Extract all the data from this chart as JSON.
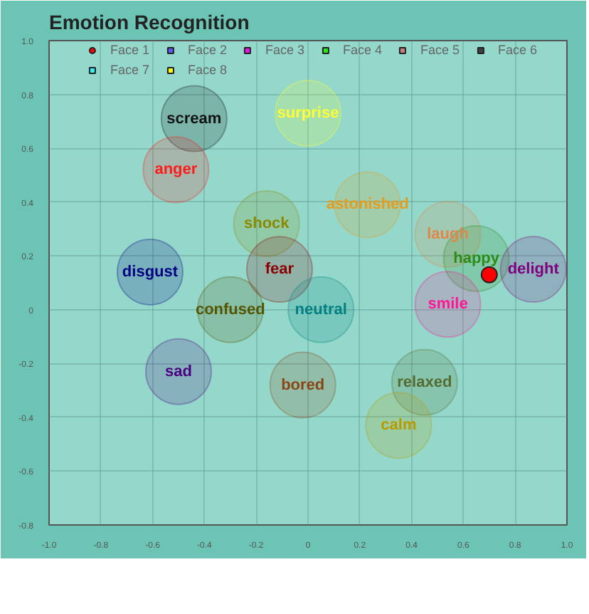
{
  "chart_data": {
    "type": "scatter",
    "title": "Emotion Recognition",
    "series": [
      {
        "x": [
          -0.44,
          0.0,
          -0.51,
          0.23,
          -0.16,
          0.54,
          0.65,
          0.87,
          -0.61,
          -0.11,
          -0.3,
          0.05,
          0.54,
          -0.5,
          -0.02,
          0.45,
          0.35
        ],
        "values": [
          0.71,
          0.73,
          0.52,
          0.39,
          0.32,
          0.28,
          0.19,
          0.15,
          0.14,
          0.15,
          0.0,
          0.0,
          0.02,
          -0.23,
          -0.28,
          -0.27,
          -0.43
        ],
        "value_labels": [
          "scream",
          "surprise",
          "anger",
          "astonished",
          "shock",
          "laugh",
          "happy",
          "delight",
          "disgust",
          "fear",
          "confused",
          "neutral",
          "smile",
          "sad",
          "bored",
          "relaxed",
          "calm"
        ],
        "colors": [
          "#111111",
          "#ffff33",
          "#ff1a1a",
          "#e69c1c",
          "#8a8a00",
          "#e0884a",
          "#2e8b1a",
          "#800080",
          "#000080",
          "#8b0000",
          "#555500",
          "#008080",
          "#ff1493",
          "#4b0082",
          "#8b4513",
          "#556b2f",
          "#b89a00"
        ]
      },
      {
        "name": "Face 1",
        "color": "#ff0000",
        "x": [
          0.7
        ],
        "values": [
          0.13
        ]
      },
      {
        "name": "Face 2",
        "color": "#5b5bf5"
      },
      {
        "name": "Face 3",
        "color": "#e817e8"
      },
      {
        "name": "Face 4",
        "color": "#22ee11"
      },
      {
        "name": "Face 5",
        "color": "#c98080"
      },
      {
        "name": "Face 6",
        "color": "#404040"
      },
      {
        "name": "Face 7",
        "color": "#33f5f5"
      },
      {
        "name": "Face 8",
        "color": "#ffff00"
      }
    ],
    "xlim": [
      -1.0,
      1.0
    ],
    "ylim": [
      -0.8,
      1.0
    ],
    "xticks": [
      {
        "value": -1.0,
        "label": "-1.0"
      },
      {
        "value": -0.8,
        "label": "-0.8"
      },
      {
        "value": -0.6,
        "label": "-0.6"
      },
      {
        "value": -0.4,
        "label": "-0.4"
      },
      {
        "value": -0.2,
        "label": "-0.2"
      },
      {
        "value": 0,
        "label": "0"
      },
      {
        "value": 0.2,
        "label": "0.2"
      },
      {
        "value": 0.4,
        "label": "0.4"
      },
      {
        "value": 0.6,
        "label": "0.6"
      },
      {
        "value": 0.8,
        "label": "0.8"
      },
      {
        "value": 1.0,
        "label": "1.0"
      }
    ],
    "yticks": [
      {
        "value": -0.8,
        "label": "-0.8"
      },
      {
        "value": -0.6,
        "label": "-0.6"
      },
      {
        "value": -0.4,
        "label": "-0.4"
      },
      {
        "value": -0.2,
        "label": "-0.2"
      },
      {
        "value": 0,
        "label": "0"
      },
      {
        "value": 0.2,
        "label": "0.2"
      },
      {
        "value": 0.4,
        "label": "0.4"
      },
      {
        "value": 0.6,
        "label": "0.6"
      },
      {
        "value": 0.8,
        "label": "0.8"
      },
      {
        "value": 1.0,
        "label": "1.0"
      }
    ],
    "grid": true,
    "legend": "top",
    "marker": "circle"
  }
}
